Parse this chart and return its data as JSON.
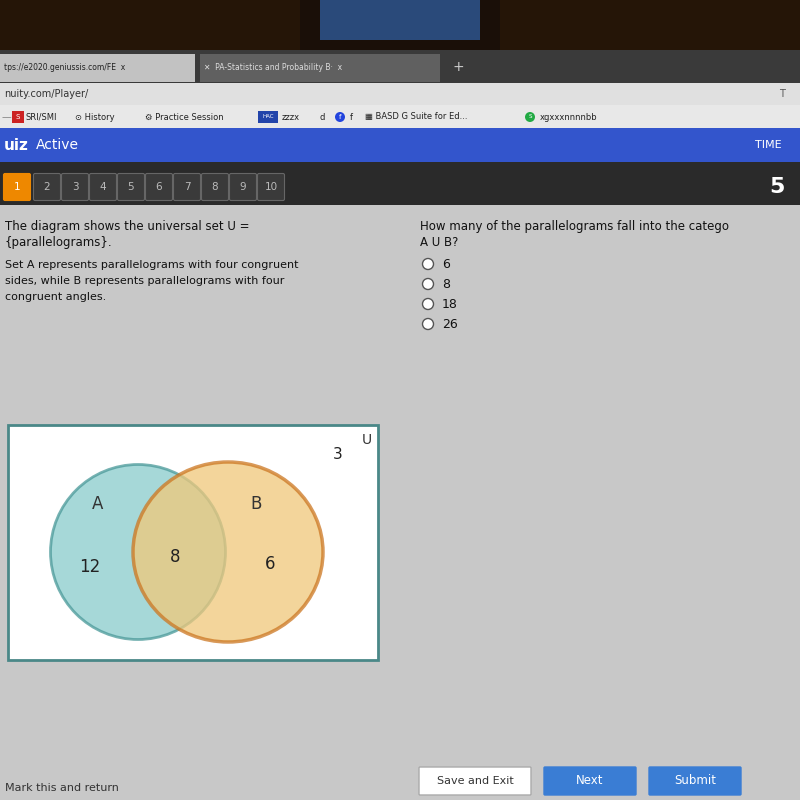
{
  "bg_top": "#2a1a0a",
  "tab_bar_bg": "#3a3a3a",
  "tab1_bg": "#c8c8c8",
  "tab2_bg": "#5a5a5a",
  "url_bar_bg": "#e8e8e8",
  "toolbar_bg": "#e8e8e8",
  "blue_banner_bg": "#3355bb",
  "quiz_bar_bg": "#333333",
  "quiz_bar_text_color": "#ffffff",
  "number_bar_bg": "#444444",
  "number_box_inactive_bg": "#555555",
  "number_box_inactive_edge": "#777777",
  "number_box_1_bg": "#ee8800",
  "number_text_color": "#dddddd",
  "content_bg": "#cccccc",
  "text_color": "#111111",
  "venn_box_edge": "#4a8888",
  "venn_box_bg": "#ffffff",
  "circle_A_face": "#88cccc",
  "circle_A_edge": "#4a9999",
  "circle_B_face": "#f0c87a",
  "circle_B_edge": "#cc7722",
  "label_A": "A",
  "label_B": "B",
  "val_only_A": "12",
  "val_intersection": "8",
  "val_only_B": "6",
  "val_outside": "3",
  "label_U": "U",
  "left_title1": "The diagram shows the universal set U =",
  "left_title2": "{parallelograms}.",
  "left_desc1": "Set A represents parallelograms with four congruent",
  "left_desc2": "sides, while B represents parallelograms with four",
  "left_desc3": "congruent angles.",
  "q_line1": "How many of the parallelograms fall into the catego",
  "q_line2": "A U B?",
  "options": [
    "6",
    "8",
    "18",
    "26"
  ],
  "time_label": "TIME",
  "time_value": "5",
  "tab_numbers": [
    "1",
    "2",
    "3",
    "4",
    "5",
    "6",
    "7",
    "8",
    "9",
    "10"
  ],
  "btn1": "Save and Exit",
  "btn2": "Next",
  "btn3": "Submit",
  "bottom_link": "Mark this and return",
  "tab1_text": "tps://e2020.geniussis.com/FE  x",
  "tab2_text": "PA-Statistics and Probability B·  x",
  "url_text": "nuity.com/Player/",
  "toolbar_text": "S SRI/SMI   ○ History   ⚙ Practice Session   HAC zzzx   d   f   BASD G Suite for Ed...   xgxxxnnnnbb"
}
